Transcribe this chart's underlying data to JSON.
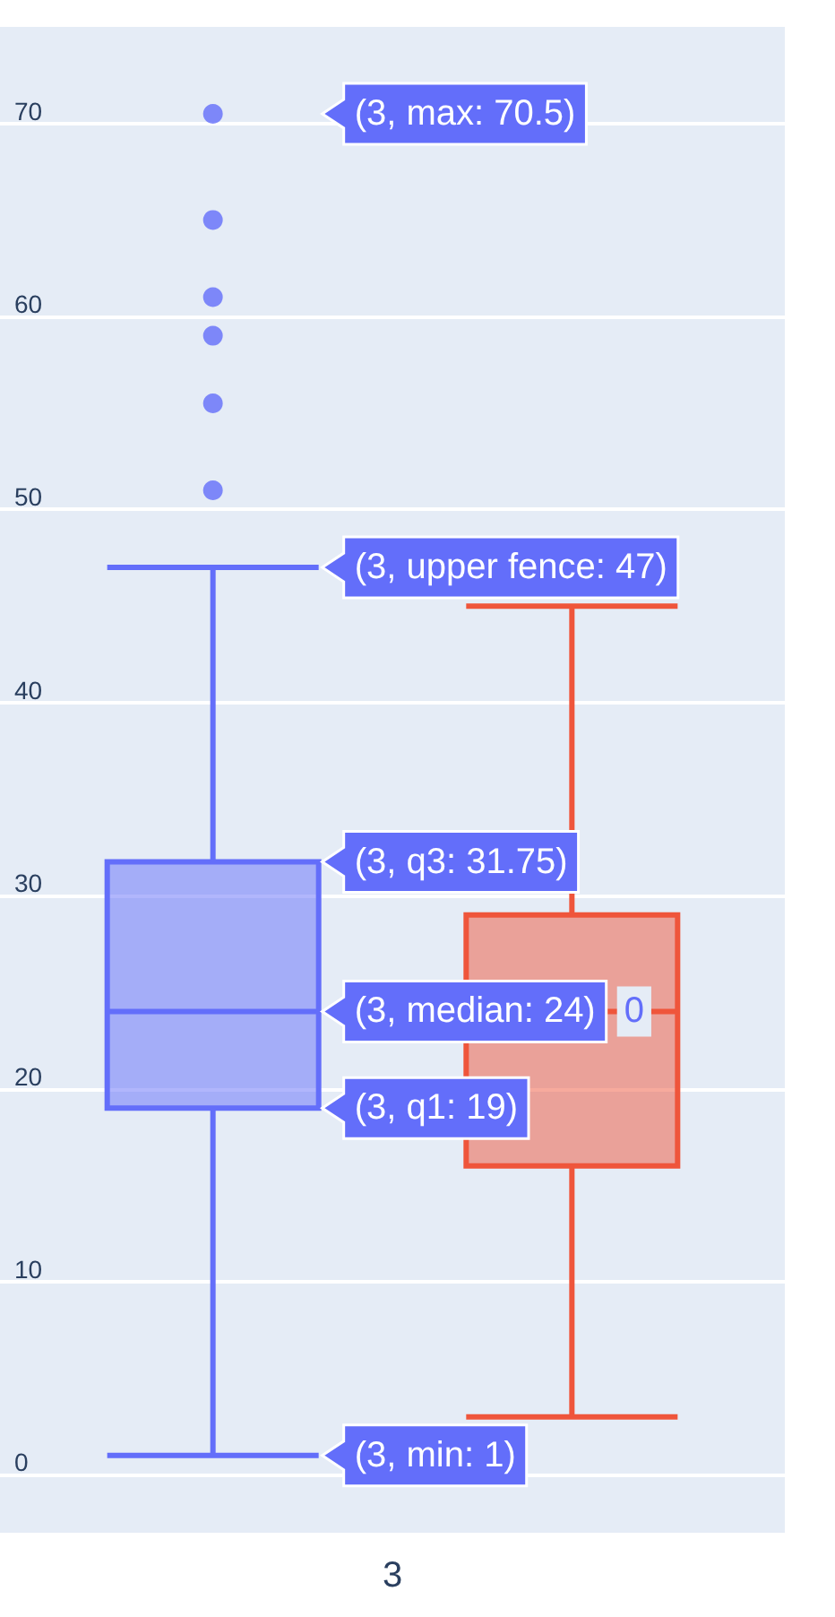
{
  "chart_data": {
    "type": "box",
    "categories": [
      "3"
    ],
    "series": [
      {
        "name": "0",
        "color": "#636efa",
        "boxes": [
          {
            "low": 1,
            "q1": 19,
            "median": 24,
            "q3": 31.75,
            "high": 47,
            "outliers": [
              51,
              55.5,
              59,
              61,
              65,
              70.5
            ]
          }
        ]
      },
      {
        "color": "#ef553b",
        "boxes": [
          {
            "low": 3,
            "q1": 16,
            "median": 24,
            "q3": 29,
            "high": 45
          }
        ]
      }
    ],
    "ylim": [
      -3,
      75
    ],
    "yticks": [
      0,
      10,
      20,
      30,
      40,
      50,
      60,
      70
    ],
    "grid": "y",
    "annotations": [
      "(3, max: 70.5)",
      "(3, upper fence: 47)",
      "(3, q3: 31.75)",
      "(3, median: 24)",
      "(3, q1: 19)",
      "(3, min: 1)"
    ]
  }
}
